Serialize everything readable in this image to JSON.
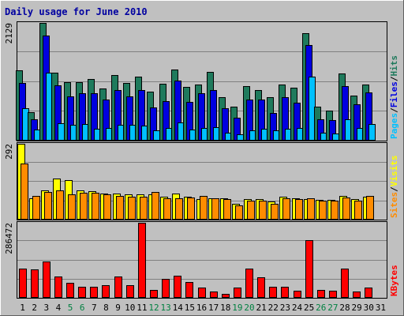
{
  "chart_data": {
    "type": "bar",
    "title": "Daily usage for June 2010",
    "colors": {
      "background": "#C0C0C0",
      "plot_background": "#C0C0C0",
      "title": "#0000A0",
      "hits": "#1F7A5C",
      "files": "#0000E0",
      "pages": "#00C0FF",
      "visits": "#FFFF00",
      "sites": "#FF8C00",
      "kbytes": "#FF0000",
      "day_weekday": "#000000",
      "day_weekend": "#008040"
    },
    "days": [
      "1",
      "2",
      "3",
      "4",
      "5",
      "6",
      "7",
      "8",
      "9",
      "10",
      "11",
      "12",
      "13",
      "14",
      "15",
      "16",
      "17",
      "18",
      "19",
      "20",
      "21",
      "22",
      "23",
      "24",
      "25",
      "26",
      "27",
      "28",
      "29",
      "30",
      "31"
    ],
    "weekend_days": [
      "5",
      "6",
      "12",
      "13",
      "19",
      "20",
      "26",
      "27"
    ],
    "panels": [
      {
        "id": "top",
        "ymax": 2129,
        "ymax_label": "2129",
        "right_label": [
          {
            "text": "Pages",
            "color": "#00C0FF"
          },
          {
            "text": "/",
            "color": "#000000"
          },
          {
            "text": "Files",
            "color": "#0000E0"
          },
          {
            "text": "/",
            "color": "#000000"
          },
          {
            "text": "Hits",
            "color": "#1F7A5C"
          }
        ],
        "series": [
          {
            "name": "Hits",
            "color": "#1F7A5C",
            "values": [
              1270,
              520,
              2129,
              1230,
              1060,
              1060,
              1120,
              950,
              1180,
              1050,
              1160,
              880,
              1030,
              1280,
              970,
              1010,
              1240,
              790,
              620,
              990,
              910,
              790,
              1010,
              960,
              1940,
              620,
              540,
              1210,
              820,
              1020,
              0
            ]
          },
          {
            "name": "Files",
            "color": "#0000E0",
            "values": [
              1050,
              380,
              1900,
              1000,
              800,
              860,
              860,
              740,
              920,
              800,
              920,
              600,
              720,
              1080,
              700,
              860,
              920,
              580,
              410,
              740,
              750,
              500,
              790,
              690,
              1730,
              380,
              370,
              990,
              660,
              870,
              0
            ]
          },
          {
            "name": "Pages",
            "color": "#00C0FF",
            "values": [
              590,
              200,
              1230,
              310,
              290,
              300,
              210,
              230,
              280,
              280,
              270,
              180,
              230,
              330,
              200,
              230,
              240,
              140,
              120,
              190,
              220,
              190,
              220,
              230,
              1160,
              140,
              130,
              390,
              230,
              300,
              0
            ]
          }
        ]
      },
      {
        "id": "middle",
        "ymax": 292,
        "ymax_label": "292",
        "right_label": [
          {
            "text": "Sites",
            "color": "#FF8C00"
          },
          {
            "text": "/",
            "color": "#000000"
          },
          {
            "text": "Visits",
            "color": "#FFFF00"
          }
        ],
        "series": [
          {
            "name": "Visits",
            "color": "#FFFF00",
            "values": [
              292,
              82,
              112,
              158,
              152,
              112,
              108,
              100,
              100,
              96,
              96,
              96,
              88,
              100,
              88,
              78,
              82,
              82,
              62,
              80,
              78,
              70,
              88,
              82,
              78,
              76,
              76,
              90,
              80,
              88,
              0
            ]
          },
          {
            "name": "Sites",
            "color": "#FF8C00",
            "values": [
              216,
              92,
              105,
              112,
              98,
              102,
              102,
              96,
              92,
              88,
              88,
              105,
              82,
              82,
              86,
              90,
              82,
              80,
              56,
              72,
              72,
              60,
              82,
              78,
              82,
              74,
              74,
              86,
              74,
              90,
              0
            ]
          }
        ]
      },
      {
        "id": "bottom",
        "ymax": 286472,
        "ymax_label": "286472",
        "right_label": [
          {
            "text": "KBytes",
            "color": "#FF0000"
          }
        ],
        "series": [
          {
            "name": "KBytes",
            "color": "#FF0000",
            "values": [
              112000,
              108000,
              140000,
              82000,
              57000,
              42000,
              43000,
              47000,
              80000,
              49000,
              286472,
              30000,
              73000,
              83000,
              59000,
              38000,
              25000,
              16000,
              40000,
              111000,
              77000,
              43000,
              43000,
              28000,
              220000,
              29000,
              28000,
              112000,
              25000,
              38000,
              0
            ]
          }
        ]
      }
    ]
  }
}
